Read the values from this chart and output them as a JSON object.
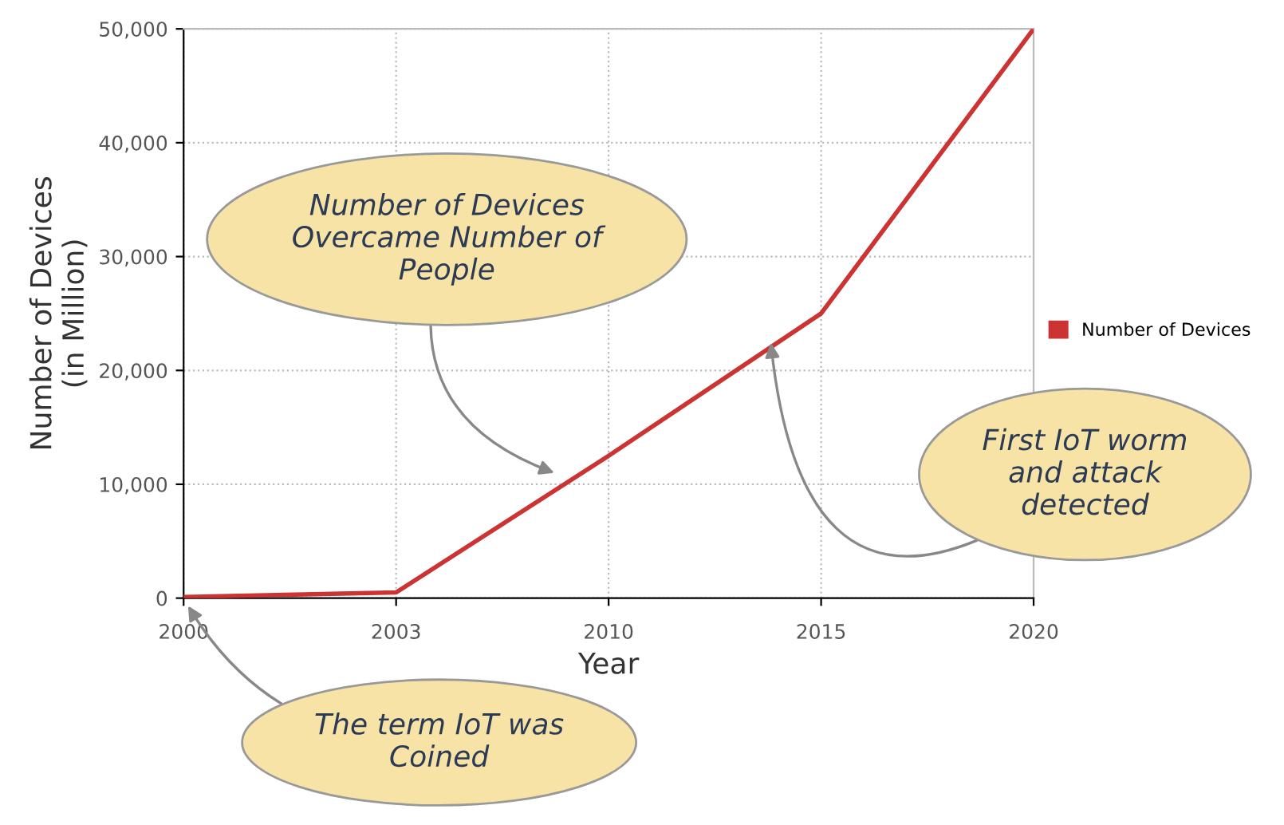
{
  "chart_data": {
    "type": "line",
    "xlabel": "Year",
    "ylabel": "Number of Devices\n(in Million)",
    "categories": [
      "2000",
      "2003",
      "2010",
      "2015",
      "2020"
    ],
    "series": [
      {
        "name": "Number of Devices",
        "color": "#cc3333",
        "values": [
          100,
          500,
          12500,
          25000,
          50000
        ]
      }
    ],
    "ylim": [
      0,
      50000
    ],
    "yticks": [
      {
        "value": 0,
        "label": "0"
      },
      {
        "value": 10000,
        "label": "10,000"
      },
      {
        "value": 20000,
        "label": "20,000"
      },
      {
        "value": 30000,
        "label": "30,000"
      },
      {
        "value": 40000,
        "label": "40,000"
      },
      {
        "value": 50000,
        "label": "50,000"
      }
    ],
    "grid": true,
    "legend": "right",
    "marker": "none",
    "line_style": "solid",
    "annotations": [
      "Number of Devices\nOvercame Number of\nPeople",
      "First IoT worm\nand attack\ndetected",
      {
        "text": "The term IoT was\nCoined",
        "x": "2000",
        "y": 0
      }
    ]
  }
}
